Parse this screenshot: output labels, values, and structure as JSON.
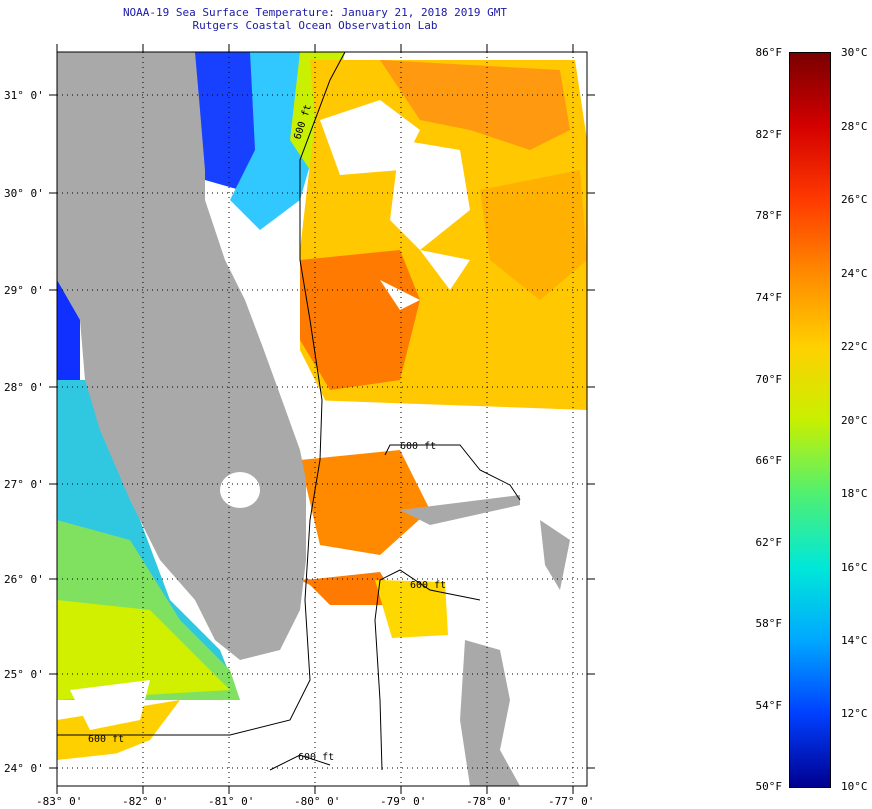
{
  "header": {
    "title_line1": "NOAA-19 Sea Surface Temperature:  January 21, 2018 2019 GMT",
    "title_line2": "Rutgers Coastal Ocean Observation Lab"
  },
  "map": {
    "lat_labels": [
      "31° 0'",
      "30° 0'",
      "29° 0'",
      "28° 0'",
      "27° 0'",
      "26° 0'",
      "25° 0'",
      "24° 0'"
    ],
    "lon_labels": [
      "-83° 0'",
      "-82° 0'",
      "-81° 0'",
      "-80° 0'",
      "-79° 0'",
      "-78° 0'",
      "-77° 0'"
    ],
    "contour_labels": [
      "600 ft",
      "600 ft",
      "600 ft",
      "600 ft",
      "600 ft"
    ],
    "land_color": "#a9a9a9",
    "cloud_color": "#ffffff"
  },
  "colorbar": {
    "fahrenheit_labels": [
      "86°F",
      "82°F",
      "78°F",
      "74°F",
      "70°F",
      "66°F",
      "62°F",
      "58°F",
      "54°F",
      "50°F"
    ],
    "celsius_labels": [
      "30°C",
      "28°C",
      "26°C",
      "24°C",
      "22°C",
      "20°C",
      "18°C",
      "16°C",
      "14°C",
      "12°C",
      "10°C"
    ],
    "colors": [
      "#7a0000",
      "#d40000",
      "#ff3a00",
      "#ff8a00",
      "#ffd000",
      "#c8f000",
      "#50f070",
      "#00e8d8",
      "#00a8ff",
      "#0040ff",
      "#000090"
    ]
  }
}
